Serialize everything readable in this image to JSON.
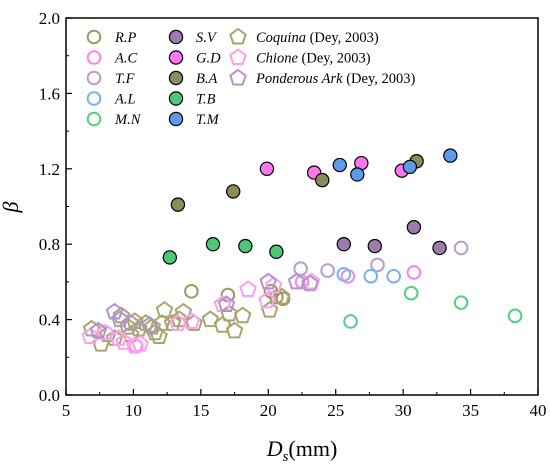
{
  "chart_data": {
    "type": "scatter",
    "xlabel": "D",
    "xlabel_sub": "s",
    "xlabel_unit": "(mm)",
    "ylabel": "β",
    "xlim": [
      5,
      40
    ],
    "ylim": [
      0.0,
      2.0
    ],
    "xticks": [
      "5",
      "10",
      "15",
      "20",
      "25",
      "30",
      "35",
      "40"
    ],
    "yticks": [
      "0.0",
      "0.4",
      "0.8",
      "1.2",
      "1.6",
      "2.0"
    ],
    "grid": false,
    "legend_placement": "top-left",
    "series": [
      {
        "name": "R.P",
        "italic": true,
        "marker": "circle-open",
        "color": "#9a9a62",
        "points": [
          [
            14.3,
            0.55
          ],
          [
            17.0,
            0.53
          ],
          [
            20.2,
            0.55
          ],
          [
            20.6,
            0.52
          ],
          [
            21.1,
            0.51
          ]
        ]
      },
      {
        "name": "A.C",
        "italic": true,
        "marker": "circle-open",
        "color": "#ff7ff0",
        "points": [
          [
            10.2,
            0.26
          ],
          [
            22.5,
            0.6
          ],
          [
            25.9,
            0.63
          ],
          [
            30.8,
            0.65
          ]
        ]
      },
      {
        "name": "T.F",
        "italic": true,
        "marker": "circle-open",
        "color": "#b89dcc",
        "points": [
          [
            22.4,
            0.67
          ],
          [
            24.4,
            0.66
          ],
          [
            28.1,
            0.69
          ],
          [
            34.3,
            0.78
          ]
        ]
      },
      {
        "name": "A.L",
        "italic": true,
        "marker": "circle-open",
        "color": "#74b4f0",
        "points": [
          [
            25.6,
            0.64
          ],
          [
            27.6,
            0.63
          ],
          [
            29.3,
            0.63
          ]
        ]
      },
      {
        "name": "M.N",
        "italic": true,
        "marker": "circle-open",
        "color": "#4fd27a",
        "points": [
          [
            26.1,
            0.39
          ],
          [
            30.6,
            0.54
          ],
          [
            34.3,
            0.49
          ],
          [
            38.3,
            0.42
          ]
        ]
      },
      {
        "name": "S.V",
        "italic": true,
        "marker": "circle-filled",
        "color": "#9e7aae",
        "points": [
          [
            25.6,
            0.8
          ],
          [
            27.9,
            0.79
          ],
          [
            30.8,
            0.89
          ],
          [
            32.7,
            0.78
          ]
        ]
      },
      {
        "name": "G.D",
        "italic": true,
        "marker": "circle-filled",
        "color": "#ff77ee",
        "points": [
          [
            19.9,
            1.2
          ],
          [
            23.4,
            1.18
          ],
          [
            26.9,
            1.23
          ],
          [
            29.9,
            1.19
          ]
        ]
      },
      {
        "name": "B.A",
        "italic": true,
        "marker": "circle-filled",
        "color": "#8c8c58",
        "points": [
          [
            13.3,
            1.01
          ],
          [
            17.4,
            1.08
          ],
          [
            24.0,
            1.14
          ],
          [
            31.0,
            1.24
          ]
        ]
      },
      {
        "name": "T.B",
        "italic": true,
        "marker": "circle-filled",
        "color": "#4cc776",
        "points": [
          [
            12.7,
            0.73
          ],
          [
            15.9,
            0.8
          ],
          [
            18.3,
            0.79
          ],
          [
            20.6,
            0.76
          ]
        ]
      },
      {
        "name": "T.M",
        "italic": true,
        "marker": "circle-filled",
        "color": "#5a9ceb",
        "points": [
          [
            25.3,
            1.22
          ],
          [
            26.6,
            1.17
          ],
          [
            30.5,
            1.21
          ],
          [
            33.5,
            1.27
          ]
        ]
      },
      {
        "name": "Coquina",
        "italic": true,
        "suffix": " (Dey, 2003)",
        "marker": "pentagon-open",
        "color": "#a6a66c",
        "points": [
          [
            6.9,
            0.35
          ],
          [
            7.6,
            0.27
          ],
          [
            8.1,
            0.32
          ],
          [
            8.6,
            0.3
          ],
          [
            9.1,
            0.42
          ],
          [
            9.6,
            0.36
          ],
          [
            9.8,
            0.32
          ],
          [
            10.1,
            0.39
          ],
          [
            10.4,
            0.35
          ],
          [
            10.9,
            0.38
          ],
          [
            11.4,
            0.36
          ],
          [
            11.6,
            0.33
          ],
          [
            11.9,
            0.31
          ],
          [
            12.1,
            0.38
          ],
          [
            12.3,
            0.45
          ],
          [
            12.9,
            0.38
          ],
          [
            13.4,
            0.4
          ],
          [
            13.7,
            0.44
          ],
          [
            14.5,
            0.38
          ],
          [
            15.7,
            0.4
          ],
          [
            16.6,
            0.37
          ],
          [
            17.1,
            0.43
          ],
          [
            17.5,
            0.34
          ],
          [
            18.1,
            0.42
          ],
          [
            20.1,
            0.45
          ],
          [
            21.0,
            0.52
          ]
        ]
      },
      {
        "name": "Chione",
        "italic": true,
        "suffix": " (Dey, 2003)",
        "marker": "pentagon-open",
        "color": "#ff9df0",
        "points": [
          [
            6.8,
            0.31
          ],
          [
            7.9,
            0.33
          ],
          [
            8.9,
            0.3
          ],
          [
            9.3,
            0.28
          ],
          [
            10.1,
            0.26
          ],
          [
            10.5,
            0.27
          ],
          [
            13.3,
            0.38
          ],
          [
            14.3,
            0.39
          ],
          [
            16.6,
            0.48
          ],
          [
            18.5,
            0.56
          ],
          [
            19.9,
            0.5
          ],
          [
            20.4,
            0.58
          ],
          [
            23.2,
            0.6
          ]
        ]
      },
      {
        "name": "Ponderous Ark",
        "italic": true,
        "suffix": " (Dey, 2003)",
        "marker": "pentagon-open",
        "color": "#b393cc",
        "points": [
          [
            7.4,
            0.34
          ],
          [
            8.6,
            0.44
          ],
          [
            9.0,
            0.4
          ],
          [
            9.8,
            0.38
          ],
          [
            11.2,
            0.37
          ],
          [
            16.9,
            0.48
          ],
          [
            20.0,
            0.6
          ],
          [
            22.1,
            0.6
          ],
          [
            23.1,
            0.59
          ]
        ]
      }
    ]
  }
}
